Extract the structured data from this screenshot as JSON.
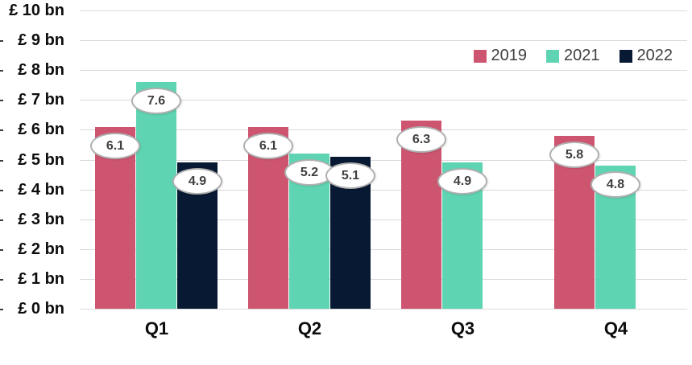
{
  "chart_data": {
    "type": "bar",
    "title": "",
    "xlabel": "",
    "ylabel": "",
    "categories": [
      "Q1",
      "Q2",
      "Q3",
      "Q4"
    ],
    "series": [
      {
        "name": "2019",
        "color": "#CE5570",
        "values": [
          6.1,
          6.1,
          6.3,
          5.8
        ]
      },
      {
        "name": "2021",
        "color": "#5FD4B2",
        "values": [
          7.6,
          5.2,
          4.9,
          4.8
        ]
      },
      {
        "name": "2022",
        "color": "#081A33",
        "values": [
          4.9,
          5.1,
          null,
          null
        ]
      }
    ],
    "y_axis": {
      "min": 0,
      "max": 10,
      "step": 1,
      "tick_labels": [
        "£ 0 bn",
        "£ 1 bn",
        "£ 2 bn",
        "£ 3 bn",
        "£ 4 bn",
        "£ 5 bn",
        "£ 6 bn",
        "£ 7 bn",
        "£ 8 bn",
        "£ 9 bn",
        "£ 10 bn"
      ]
    },
    "grid": true,
    "legend_position": "top-right",
    "data_labels": "oval white callouts near top of each bar, one decimal place"
  },
  "colors": {
    "series_2019": "#CE5570",
    "series_2021": "#5FD4B2",
    "series_2022": "#081A33",
    "gridline": "#D9D9D9",
    "axis_text": "#0D0D0D",
    "legend_text": "#404040",
    "callout_border": "#B0B0B0",
    "callout_text": "#3F3F3F",
    "background": "#FFFFFF"
  }
}
